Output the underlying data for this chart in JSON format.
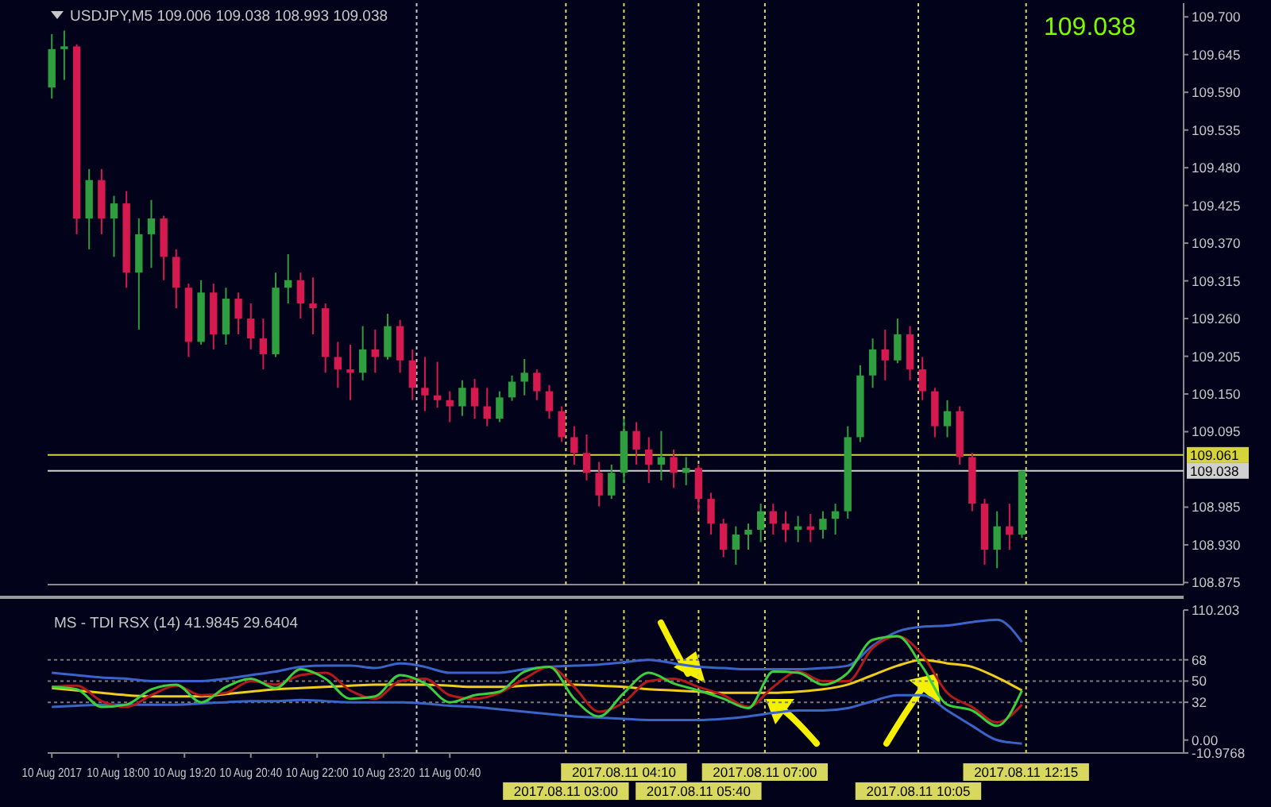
{
  "chart_data": [
    {
      "type": "candlestick",
      "title": "USDJPY,M5  109.006 109.038 108.993 109.038",
      "annotations": [
        "109.038"
      ],
      "colors": [
        "#2e9e3e",
        "#2e9e3e",
        "#d6194f",
        "#2e9e3e",
        "#d6194f",
        "#2e9e3e",
        "#d6194f",
        "#2e9e3e",
        "#2e9e3e",
        "#d6194f",
        "#d6194f",
        "#d6194f",
        "#2e9e3e",
        "#d6194f",
        "#2e9e3e",
        "#d6194f",
        "#d6194f",
        "#d6194f",
        "#2e9e3e",
        "#2e9e3e",
        "#d6194f",
        "#d6194f",
        "#d6194f",
        "#d6194f",
        "#d6194f",
        "#2e9e3e",
        "#d6194f",
        "#2e9e3e",
        "#d6194f",
        "#d6194f",
        "#d6194f",
        "#d6194f",
        "#d6194f",
        "#2e9e3e",
        "#d6194f",
        "#d6194f",
        "#2e9e3e",
        "#2e9e3e",
        "#2e9e3e",
        "#d6194f",
        "#d6194f",
        "#d6194f",
        "#d6194f",
        "#d6194f",
        "#d6194f",
        "#2e9e3e",
        "#2e9e3e",
        "#d6194f",
        "#d6194f",
        "#2e9e3e",
        "#d6194f",
        "#2e9e3e",
        "#d6194f",
        "#d6194f",
        "#d6194f",
        "#2e9e3e",
        "#2e9e3e",
        "#2e9e3e",
        "#d6194f",
        "#d6194f",
        "#2e9e3e",
        "#d6194f",
        "#2e9e3e",
        "#2e9e3e",
        "#2e9e3e",
        "#2e9e3e",
        "#2e9e3e",
        "#d6194f",
        "#2e9e3e",
        "#d6194f",
        "#d6194f",
        "#d6194f",
        "#2e9e3e",
        "#d6194f",
        "#d6194f",
        "#d6194f",
        "#2e9e3e",
        "#d6194f",
        "#2e9e3e"
      ],
      "x": [
        "2017-08-10T16:40",
        "2017-08-10T16:55",
        "2017-08-10T17:10",
        "2017-08-10T17:25",
        "2017-08-10T17:40",
        "2017-08-10T17:55",
        "2017-08-10T18:10",
        "2017-08-10T18:25",
        "2017-08-10T18:40",
        "2017-08-10T18:55",
        "2017-08-10T19:10",
        "2017-08-10T19:25",
        "2017-08-10T19:40",
        "2017-08-10T19:55",
        "2017-08-10T20:10",
        "2017-08-10T20:25",
        "2017-08-10T20:40",
        "2017-08-10T20:55",
        "2017-08-10T21:10",
        "2017-08-10T21:25",
        "2017-08-10T21:40",
        "2017-08-10T21:55",
        "2017-08-10T22:10",
        "2017-08-10T22:25",
        "2017-08-10T22:40",
        "2017-08-10T22:55",
        "2017-08-10T23:10",
        "2017-08-10T23:25",
        "2017-08-10T23:40",
        "2017-08-10T23:55",
        "2017-08-11T00:10",
        "2017-08-11T00:25",
        "2017-08-11T00:40",
        "2017-08-11T00:55",
        "2017-08-11T01:10",
        "2017-08-11T01:25",
        "2017-08-11T01:40",
        "2017-08-11T01:55",
        "2017-08-11T02:10",
        "2017-08-11T02:25",
        "2017-08-11T02:40",
        "2017-08-11T02:55",
        "2017-08-11T03:10",
        "2017-08-11T03:25",
        "2017-08-11T03:40",
        "2017-08-11T03:55",
        "2017-08-11T04:10",
        "2017-08-11T04:25",
        "2017-08-11T04:40",
        "2017-08-11T04:55",
        "2017-08-11T05:10",
        "2017-08-11T05:25",
        "2017-08-11T05:40",
        "2017-08-11T05:55",
        "2017-08-11T06:10",
        "2017-08-11T06:25",
        "2017-08-11T06:40",
        "2017-08-11T06:55",
        "2017-08-11T07:10",
        "2017-08-11T07:25",
        "2017-08-11T07:40",
        "2017-08-11T07:55",
        "2017-08-11T08:10",
        "2017-08-11T08:25",
        "2017-08-11T08:40",
        "2017-08-11T08:55",
        "2017-08-11T09:10",
        "2017-08-11T09:25",
        "2017-08-11T09:40",
        "2017-08-11T09:55",
        "2017-08-11T10:10",
        "2017-08-11T10:25",
        "2017-08-11T10:40",
        "2017-08-11T10:55",
        "2017-08-11T11:10",
        "2017-08-11T11:25",
        "2017-08-11T11:40",
        "2017-08-11T11:55",
        "2017-08-11T12:10"
      ],
      "ohlc": [
        [
          109.597,
          109.675,
          109.581,
          109.653
        ],
        [
          109.653,
          109.68,
          109.608,
          109.657
        ],
        [
          109.657,
          109.66,
          109.383,
          109.406
        ],
        [
          109.406,
          109.478,
          109.361,
          109.462
        ],
        [
          109.462,
          109.478,
          109.383,
          109.406
        ],
        [
          109.406,
          109.439,
          109.35,
          109.428
        ],
        [
          109.428,
          109.446,
          109.305,
          109.327
        ],
        [
          109.327,
          109.406,
          109.244,
          109.383
        ],
        [
          109.383,
          109.433,
          109.334,
          109.406
        ],
        [
          109.406,
          109.41,
          109.316,
          109.35
        ],
        [
          109.35,
          109.361,
          109.275,
          109.305
        ],
        [
          109.305,
          109.311,
          109.204,
          109.226
        ],
        [
          109.226,
          109.316,
          109.222,
          109.298
        ],
        [
          109.298,
          109.311,
          109.215,
          109.237
        ],
        [
          109.237,
          109.305,
          109.222,
          109.289
        ],
        [
          109.289,
          109.298,
          109.237,
          109.26
        ],
        [
          109.26,
          109.282,
          109.215,
          109.231
        ],
        [
          109.231,
          109.26,
          109.186,
          109.208
        ],
        [
          109.208,
          109.327,
          109.204,
          109.305
        ],
        [
          109.305,
          109.354,
          109.282,
          109.316
        ],
        [
          109.316,
          109.327,
          109.26,
          109.282
        ],
        [
          109.282,
          109.32,
          109.237,
          109.275
        ],
        [
          109.275,
          109.282,
          109.181,
          109.204
        ],
        [
          109.204,
          109.226,
          109.159,
          109.186
        ],
        [
          109.186,
          109.222,
          109.141,
          109.181
        ],
        [
          109.181,
          109.249,
          109.17,
          109.215
        ],
        [
          109.215,
          109.244,
          109.181,
          109.204
        ],
        [
          109.204,
          109.267,
          109.2,
          109.249
        ],
        [
          109.249,
          109.258,
          109.181,
          109.199
        ],
        [
          109.199,
          109.215,
          109.141,
          109.159
        ],
        [
          109.159,
          109.204,
          109.125,
          109.148
        ],
        [
          109.148,
          109.197,
          109.13,
          109.141
        ],
        [
          109.141,
          109.154,
          109.109,
          109.132
        ],
        [
          109.132,
          109.17,
          109.118,
          109.159
        ],
        [
          109.159,
          109.172,
          109.114,
          109.132
        ],
        [
          109.132,
          109.159,
          109.103,
          109.114
        ],
        [
          109.114,
          109.154,
          109.109,
          109.145
        ],
        [
          109.145,
          109.177,
          109.14,
          109.168
        ],
        [
          109.168,
          109.201,
          109.148,
          109.181
        ],
        [
          109.181,
          109.186,
          109.141,
          109.154
        ],
        [
          109.154,
          109.163,
          109.114,
          109.125
        ],
        [
          109.125,
          109.132,
          109.08,
          109.087
        ],
        [
          109.087,
          109.103,
          109.047,
          109.064
        ],
        [
          109.064,
          109.091,
          109.024,
          109.035
        ],
        [
          109.035,
          109.051,
          108.986,
          109.002
        ],
        [
          109.002,
          109.047,
          108.997,
          109.035
        ],
        [
          109.035,
          109.114,
          109.02,
          109.096
        ],
        [
          109.096,
          109.109,
          109.047,
          109.069
        ],
        [
          109.069,
          109.087,
          109.02,
          109.047
        ],
        [
          109.047,
          109.096,
          109.024,
          109.058
        ],
        [
          109.058,
          109.069,
          109.013,
          109.035
        ],
        [
          109.035,
          109.058,
          109.017,
          109.042
        ],
        [
          109.042,
          109.047,
          108.979,
          108.997
        ],
        [
          108.997,
          109.006,
          108.945,
          108.961
        ],
        [
          108.961,
          108.968,
          108.912,
          108.923
        ],
        [
          108.923,
          108.957,
          108.901,
          108.945
        ],
        [
          108.945,
          108.961,
          108.923,
          108.952
        ],
        [
          108.952,
          108.99,
          108.934,
          108.979
        ],
        [
          108.979,
          108.99,
          108.945,
          108.961
        ],
        [
          108.961,
          108.979,
          108.934,
          108.952
        ],
        [
          108.952,
          108.972,
          108.934,
          108.957
        ],
        [
          108.957,
          108.975,
          108.934,
          108.952
        ],
        [
          108.952,
          108.979,
          108.939,
          108.968
        ],
        [
          108.968,
          108.99,
          108.945,
          108.979
        ],
        [
          108.979,
          109.103,
          108.968,
          109.087
        ],
        [
          109.087,
          109.192,
          109.08,
          109.177
        ],
        [
          109.177,
          109.231,
          109.159,
          109.215
        ],
        [
          109.215,
          109.244,
          109.17,
          109.199
        ],
        [
          109.199,
          109.26,
          109.195,
          109.237
        ],
        [
          109.237,
          109.249,
          109.17,
          109.186
        ],
        [
          109.186,
          109.204,
          109.141,
          109.154
        ],
        [
          109.154,
          109.159,
          109.087,
          109.103
        ],
        [
          109.103,
          109.141,
          109.087,
          109.125
        ],
        [
          109.125,
          109.132,
          109.047,
          109.058
        ],
        [
          109.058,
          109.064,
          108.979,
          108.99
        ],
        [
          108.99,
          108.997,
          108.901,
          108.923
        ],
        [
          108.923,
          108.979,
          108.896,
          108.957
        ],
        [
          108.957,
          108.99,
          108.923,
          108.945
        ],
        [
          108.945,
          109.038,
          108.94,
          109.038
        ]
      ],
      "xlim": [
        "2017-08-10T16:35",
        "2017-08-11T15:25"
      ],
      "ylim": [
        108.872,
        109.72
      ],
      "yticks": [
        {
          "value": 109.7,
          "label": "109.700"
        },
        109.645,
        {
          "value": 109.59,
          "label": "109.590"
        },
        109.535,
        {
          "value": 109.48,
          "label": "109.480"
        },
        109.425,
        {
          "value": 109.37,
          "label": "109.370"
        },
        109.315,
        {
          "value": 109.26,
          "label": "109.260"
        },
        109.205,
        {
          "value": 109.15,
          "label": "109.150"
        },
        109.095,
        108.985,
        {
          "value": 108.93,
          "label": "108.930"
        },
        108.875
      ],
      "tick_labels": "y",
      "ref_lines": [
        {
          "axis": "x",
          "value": "2017-08-11T00:00",
          "color": "#c8c8c8",
          "line_style": "dotted"
        },
        {
          "axis": "x",
          "value": "2017-08-11T03:00",
          "color": "#d8d860",
          "line_style": "dotted"
        },
        {
          "axis": "x",
          "value": "2017-08-11T04:10",
          "color": "#d8d860",
          "line_style": "dotted"
        },
        {
          "axis": "x",
          "value": "2017-08-11T05:40",
          "color": "#d8d860",
          "line_style": "dotted"
        },
        {
          "axis": "x",
          "value": "2017-08-11T07:00",
          "color": "#d8d860",
          "line_style": "dotted"
        },
        {
          "axis": "x",
          "value": "2017-08-11T10:05",
          "color": "#d8d860",
          "line_style": "dotted"
        },
        {
          "axis": "x",
          "value": "2017-08-11T12:15",
          "color": "#d8d860",
          "line_style": "dotted"
        },
        {
          "axis": "y",
          "value": 109.061,
          "label": "109.061",
          "color": "#d4d43a",
          "line_style": "solid"
        },
        {
          "axis": "y",
          "value": 109.038,
          "label": "109.038",
          "color": "#d0d0d0",
          "line_style": "solid"
        }
      ]
    },
    {
      "type": "line",
      "title": "MS - TDI RSX (14) 41.9845 29.6404",
      "x": [
        "2017-08-10T16:40",
        "2017-08-10T17:10",
        "2017-08-10T17:40",
        "2017-08-10T18:10",
        "2017-08-10T18:40",
        "2017-08-10T19:10",
        "2017-08-10T19:40",
        "2017-08-10T20:10",
        "2017-08-10T20:40",
        "2017-08-10T21:10",
        "2017-08-10T21:40",
        "2017-08-10T22:10",
        "2017-08-10T22:40",
        "2017-08-10T23:10",
        "2017-08-10T23:40",
        "2017-08-11T00:10",
        "2017-08-11T00:40",
        "2017-08-11T01:10",
        "2017-08-11T01:40",
        "2017-08-11T02:10",
        "2017-08-11T02:40",
        "2017-08-11T03:10",
        "2017-08-11T03:40",
        "2017-08-11T04:10",
        "2017-08-11T04:40",
        "2017-08-11T05:10",
        "2017-08-11T05:40",
        "2017-08-11T06:10",
        "2017-08-11T06:40",
        "2017-08-11T07:10",
        "2017-08-11T07:40",
        "2017-08-11T08:10",
        "2017-08-11T08:40",
        "2017-08-11T09:10",
        "2017-08-11T09:40",
        "2017-08-11T10:10",
        "2017-08-11T10:40",
        "2017-08-11T11:10",
        "2017-08-11T11:40",
        "2017-08-11T12:10"
      ],
      "series": [
        {
          "color": "#3a64c8",
          "values": [
            57,
            55,
            53,
            52,
            50,
            50,
            50,
            52,
            55,
            58,
            62,
            63,
            63,
            61,
            65,
            62,
            57,
            57,
            57,
            60,
            62,
            63,
            64,
            66,
            68,
            65,
            62,
            61,
            60,
            60,
            60,
            61,
            63,
            80,
            92,
            96,
            97,
            100,
            102,
            83
          ]
        },
        {
          "color": "#3a64c8",
          "values": [
            28,
            29,
            30,
            30,
            30,
            30,
            31,
            32,
            33,
            33,
            34,
            33,
            32,
            32,
            32,
            31,
            29,
            28,
            26,
            24,
            22,
            20,
            19,
            18,
            17,
            17,
            17,
            18,
            20,
            23,
            25,
            25,
            27,
            33,
            38,
            38,
            25,
            12,
            0,
            -3
          ]
        },
        {
          "color": "#f0cc1c",
          "values": [
            44,
            42,
            40,
            38,
            37,
            37,
            37,
            39,
            41,
            43,
            44,
            45,
            46,
            47,
            47,
            47,
            46,
            45,
            45,
            46,
            47,
            47,
            46,
            45,
            43,
            42,
            41,
            40,
            40,
            40,
            41,
            43,
            47,
            55,
            63,
            68,
            65,
            62,
            53,
            42
          ]
        },
        {
          "color": "#b31b1b",
          "values": [
            45,
            46,
            33,
            28,
            38,
            46,
            38,
            40,
            50,
            47,
            55,
            57,
            42,
            35,
            50,
            52,
            38,
            35,
            40,
            52,
            62,
            45,
            24,
            32,
            50,
            52,
            45,
            38,
            28,
            45,
            58,
            50,
            50,
            78,
            88,
            72,
            40,
            28,
            15,
            30
          ]
        },
        {
          "color": "#3ecf3e",
          "values": [
            45,
            43,
            28,
            30,
            43,
            47,
            32,
            45,
            52,
            44,
            60,
            52,
            35,
            37,
            55,
            48,
            32,
            38,
            41,
            58,
            62,
            35,
            20,
            40,
            57,
            48,
            42,
            35,
            27,
            58,
            57,
            47,
            57,
            85,
            88,
            62,
            30,
            25,
            12,
            42
          ]
        }
      ],
      "xlim": [
        "2017-08-10T16:35",
        "2017-08-11T15:25"
      ],
      "xticks": [
        {
          "value": "2017-08-10T16:40",
          "label": "10 Aug 2017"
        },
        {
          "value": "2017-08-10T18:00",
          "label": "10 Aug 18:00"
        },
        {
          "value": "2017-08-10T19:20",
          "label": "10 Aug 19:20"
        },
        {
          "value": "2017-08-10T20:40",
          "label": "10 Aug 20:40"
        },
        {
          "value": "2017-08-10T22:00",
          "label": "10 Aug 22:00"
        },
        {
          "value": "2017-08-10T23:20",
          "label": "10 Aug 23:20"
        },
        {
          "value": "2017-08-11T00:40",
          "label": "11 Aug 00:40"
        }
      ],
      "ylim": [
        -10.9768,
        110.203
      ],
      "yticks": [
        110.203,
        68,
        50,
        32,
        {
          "value": 0,
          "label": "0.00"
        },
        -10.9768
      ],
      "ref_lines": [
        {
          "axis": "x",
          "value": "2017-08-11T00:00",
          "color": "#c8c8c8",
          "line_style": "dotted"
        },
        {
          "axis": "x",
          "value": "2017-08-11T03:00",
          "label": "2017.08.11 03:00",
          "color": "#d8d860",
          "line_style": "dotted"
        },
        {
          "axis": "x",
          "value": "2017-08-11T04:10",
          "label": "2017.08.11 04:10",
          "color": "#d8d860",
          "line_style": "dotted"
        },
        {
          "axis": "x",
          "value": "2017-08-11T05:40",
          "label": "2017.08.11 05:40",
          "color": "#d8d860",
          "line_style": "dotted"
        },
        {
          "axis": "x",
          "value": "2017-08-11T07:00",
          "label": "2017.08.11 07:00",
          "color": "#d8d860",
          "line_style": "dotted"
        },
        {
          "axis": "x",
          "value": "2017-08-11T10:05",
          "label": "2017.08.11 10:05",
          "color": "#d8d860",
          "line_style": "dotted"
        },
        {
          "axis": "x",
          "value": "2017-08-11T12:15",
          "label": "2017.08.11 12:15",
          "color": "#d8d860",
          "line_style": "dotted"
        },
        {
          "axis": "y",
          "value": 68,
          "color": "#7a7a7a",
          "line_style": "dotted"
        },
        {
          "axis": "y",
          "value": 50,
          "color": "#7a7a7a",
          "line_style": "dotted"
        },
        {
          "axis": "y",
          "value": 32,
          "color": "#7a7a7a",
          "line_style": "dotted"
        }
      ]
    }
  ]
}
